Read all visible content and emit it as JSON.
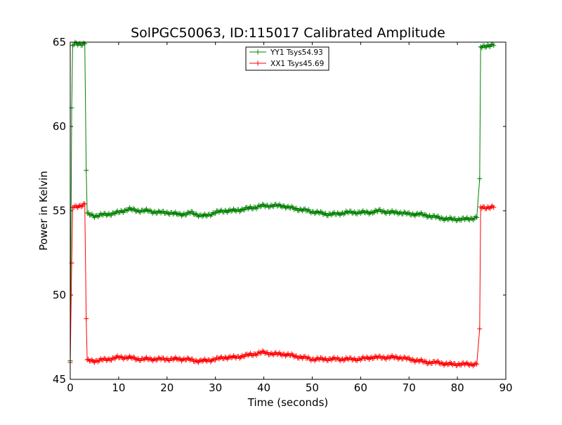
{
  "chart_data": {
    "type": "line",
    "title": "SolPGC50063, ID:115017 Calibrated Amplitude",
    "xlabel": "Time (seconds)",
    "ylabel": "Power in Kelvin",
    "xlim": [
      0,
      90
    ],
    "ylim": [
      45,
      65
    ],
    "x_ticks": [
      0,
      10,
      20,
      30,
      40,
      50,
      60,
      70,
      80,
      90
    ],
    "y_ticks": [
      45,
      50,
      55,
      60,
      65
    ],
    "grid": false,
    "legend_position": "upper-center",
    "marker": "plus",
    "series": [
      {
        "name": "YY1 Tsys54.93",
        "color": "#008000",
        "points": [
          [
            0.0,
            46.1
          ],
          [
            0.3,
            61.1
          ],
          [
            0.5,
            64.8
          ],
          [
            1,
            64.9
          ],
          [
            2,
            64.9
          ],
          [
            3.0,
            64.9
          ],
          [
            3.3,
            57.4
          ],
          [
            3.5,
            54.8
          ],
          [
            5,
            54.7
          ],
          [
            8,
            54.8
          ],
          [
            10,
            54.9
          ],
          [
            11,
            55.0
          ],
          [
            12,
            55.1
          ],
          [
            14,
            55.0
          ],
          [
            16,
            55.0
          ],
          [
            18,
            54.9
          ],
          [
            20,
            54.9
          ],
          [
            22,
            54.8
          ],
          [
            24,
            54.8
          ],
          [
            25,
            54.9
          ],
          [
            27,
            54.7
          ],
          [
            28,
            54.7
          ],
          [
            30,
            54.9
          ],
          [
            32,
            55.0
          ],
          [
            34,
            55.0
          ],
          [
            36,
            55.1
          ],
          [
            38,
            55.2
          ],
          [
            40,
            55.3
          ],
          [
            42,
            55.3
          ],
          [
            44,
            55.3
          ],
          [
            45,
            55.2
          ],
          [
            47,
            55.1
          ],
          [
            49,
            55.0
          ],
          [
            51,
            54.9
          ],
          [
            53,
            54.8
          ],
          [
            55,
            54.8
          ],
          [
            57,
            54.9
          ],
          [
            60,
            54.9
          ],
          [
            62,
            54.9
          ],
          [
            64,
            55.0
          ],
          [
            66,
            54.9
          ],
          [
            68,
            54.9
          ],
          [
            70,
            54.8
          ],
          [
            72,
            54.8
          ],
          [
            74,
            54.7
          ],
          [
            76,
            54.6
          ],
          [
            78,
            54.5
          ],
          [
            80,
            54.5
          ],
          [
            82,
            54.5
          ],
          [
            84,
            54.6
          ],
          [
            84.6,
            56.9
          ],
          [
            84.8,
            64.7
          ],
          [
            86,
            64.8
          ],
          [
            87.5,
            64.8
          ]
        ]
      },
      {
        "name": "XX1 Tsys45.69",
        "color": "#ff0000",
        "points": [
          [
            0.0,
            46.0
          ],
          [
            0.3,
            51.9
          ],
          [
            0.5,
            55.2
          ],
          [
            1,
            55.2
          ],
          [
            2,
            55.3
          ],
          [
            3.0,
            55.4
          ],
          [
            3.3,
            48.6
          ],
          [
            3.5,
            46.1
          ],
          [
            5,
            46.1
          ],
          [
            8,
            46.2
          ],
          [
            10,
            46.3
          ],
          [
            12,
            46.3
          ],
          [
            14,
            46.2
          ],
          [
            16,
            46.2
          ],
          [
            18,
            46.2
          ],
          [
            20,
            46.2
          ],
          [
            22,
            46.2
          ],
          [
            24,
            46.2
          ],
          [
            26,
            46.1
          ],
          [
            28,
            46.1
          ],
          [
            30,
            46.2
          ],
          [
            32,
            46.3
          ],
          [
            34,
            46.3
          ],
          [
            36,
            46.4
          ],
          [
            38,
            46.5
          ],
          [
            40,
            46.6
          ],
          [
            42,
            46.5
          ],
          [
            44,
            46.5
          ],
          [
            46,
            46.4
          ],
          [
            48,
            46.3
          ],
          [
            50,
            46.2
          ],
          [
            52,
            46.2
          ],
          [
            54,
            46.2
          ],
          [
            56,
            46.2
          ],
          [
            58,
            46.2
          ],
          [
            60,
            46.2
          ],
          [
            62,
            46.3
          ],
          [
            64,
            46.3
          ],
          [
            66,
            46.3
          ],
          [
            68,
            46.3
          ],
          [
            70,
            46.2
          ],
          [
            72,
            46.1
          ],
          [
            74,
            46.0
          ],
          [
            76,
            46.0
          ],
          [
            78,
            45.9
          ],
          [
            80,
            45.9
          ],
          [
            82,
            45.9
          ],
          [
            84,
            45.9
          ],
          [
            84.6,
            48.0
          ],
          [
            84.8,
            55.2
          ],
          [
            86,
            55.2
          ],
          [
            87.5,
            55.2
          ]
        ]
      }
    ]
  }
}
